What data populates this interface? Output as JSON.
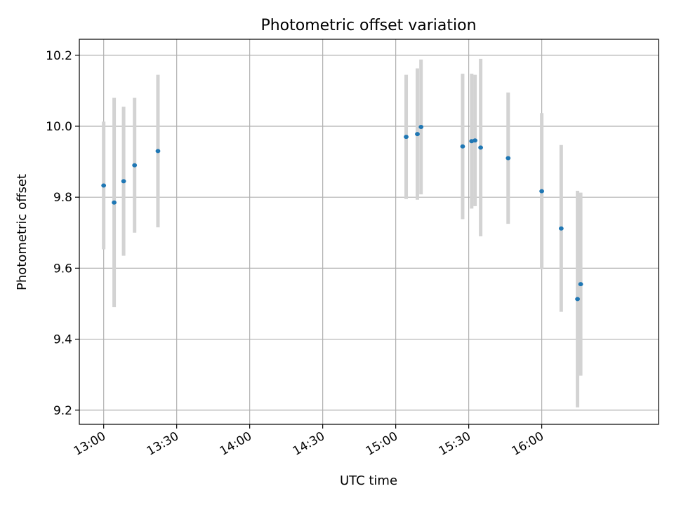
{
  "chart_data": {
    "type": "scatter",
    "title": "Photometric offset variation",
    "xlabel": "UTC time",
    "ylabel": "Photometric offset",
    "x_range_minutes": [
      770,
      1008
    ],
    "ylim": [
      9.16,
      10.245
    ],
    "grid": true,
    "colors": {
      "point": "#1f77b4",
      "errorbar": "#d3d3d3",
      "grid": "#b0b0b0",
      "axis": "#000000"
    },
    "x_ticks": [
      {
        "minutes": 780,
        "label": "13:00"
      },
      {
        "minutes": 810,
        "label": "13:30"
      },
      {
        "minutes": 840,
        "label": "14:00"
      },
      {
        "minutes": 870,
        "label": "14:30"
      },
      {
        "minutes": 900,
        "label": "15:00"
      },
      {
        "minutes": 930,
        "label": "15:30"
      },
      {
        "minutes": 960,
        "label": "16:00"
      }
    ],
    "y_ticks": [
      {
        "value": 9.2,
        "label": "9.2"
      },
      {
        "value": 9.4,
        "label": "9.4"
      },
      {
        "value": 9.6,
        "label": "9.6"
      },
      {
        "value": 9.8,
        "label": "9.8"
      },
      {
        "value": 10.0,
        "label": "10.0"
      },
      {
        "value": 10.2,
        "label": "10.2"
      }
    ],
    "points": [
      {
        "t": 780.0,
        "y": 9.833,
        "err": 0.18
      },
      {
        "t": 784.3,
        "y": 9.785,
        "err": 0.295
      },
      {
        "t": 788.2,
        "y": 9.845,
        "err": 0.21
      },
      {
        "t": 792.7,
        "y": 9.89,
        "err": 0.19
      },
      {
        "t": 802.3,
        "y": 9.93,
        "err": 0.215
      },
      {
        "t": 904.3,
        "y": 9.97,
        "err": 0.175
      },
      {
        "t": 908.9,
        "y": 9.978,
        "err": 0.185
      },
      {
        "t": 910.4,
        "y": 9.998,
        "err": 0.19
      },
      {
        "t": 927.5,
        "y": 9.943,
        "err": 0.205
      },
      {
        "t": 931.2,
        "y": 9.958,
        "err": 0.19
      },
      {
        "t": 932.6,
        "y": 9.96,
        "err": 0.185
      },
      {
        "t": 934.9,
        "y": 9.94,
        "err": 0.25
      },
      {
        "t": 946.2,
        "y": 9.91,
        "err": 0.185
      },
      {
        "t": 960.0,
        "y": 9.817,
        "err": 0.22
      },
      {
        "t": 968.0,
        "y": 9.712,
        "err": 0.235
      },
      {
        "t": 974.7,
        "y": 9.513,
        "err": 0.305
      },
      {
        "t": 976.0,
        "y": 9.555,
        "err": 0.258
      }
    ]
  }
}
